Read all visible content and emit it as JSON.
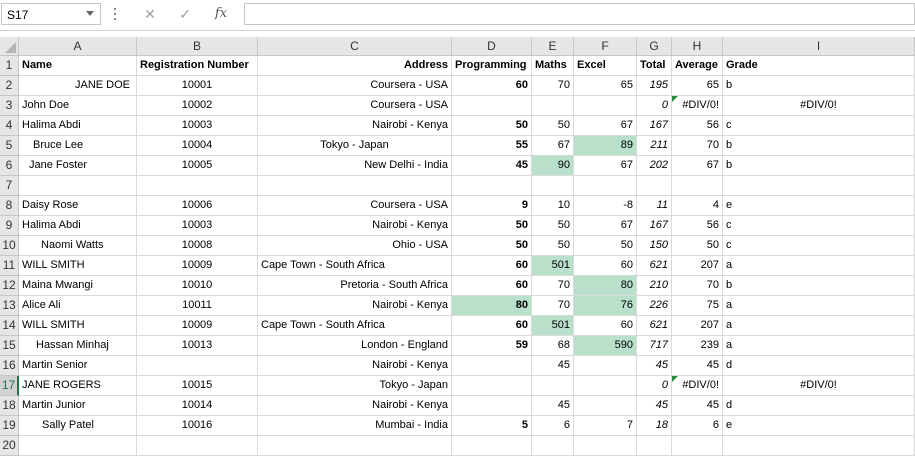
{
  "name_box": {
    "value": "S17"
  },
  "formula_bar": {
    "cancel_icon": "✕",
    "enter_icon": "✓",
    "fx_label": "fx",
    "value": ""
  },
  "columns": [
    "A",
    "B",
    "C",
    "D",
    "E",
    "F",
    "G",
    "H",
    "I"
  ],
  "selected_row": "17",
  "accent_color": "#217346",
  "highlight_color": "#b8e0ca",
  "rows": [
    {
      "num": "1",
      "A": "Name",
      "B": "Registration Number",
      "C": "Address",
      "D": "Programming",
      "E": "Maths",
      "F": "Excel",
      "G": "Total",
      "H": "Average",
      "I": "Grade"
    },
    {
      "num": "2",
      "A": "JANE DOE",
      "B": "10001",
      "C": "Coursera - USA",
      "D": "60",
      "E": "70",
      "F": "65",
      "G": "195",
      "H": "65",
      "I": "b"
    },
    {
      "num": "3",
      "A": "John Doe",
      "B": "10002",
      "C": "Coursera - USA",
      "D": "",
      "E": "",
      "F": "",
      "G": "0",
      "H": "#DIV/0!",
      "I": "#DIV/0!"
    },
    {
      "num": "4",
      "A": "Halima Abdi",
      "B": "10003",
      "C": "Nairobi - Kenya",
      "D": "50",
      "E": "50",
      "F": "67",
      "G": "167",
      "H": "56",
      "I": "c"
    },
    {
      "num": "5",
      "A": "Bruce     Lee",
      "B": "10004",
      "C": "Tokyo - Japan",
      "D": "55",
      "E": "67",
      "F": "89",
      "G": "211",
      "H": "70",
      "I": "b"
    },
    {
      "num": "6",
      "A": "Jane  Foster",
      "B": "10005",
      "C": "New Delhi - India",
      "D": "45",
      "E": "90",
      "F": "67",
      "G": "202",
      "H": "67",
      "I": "b"
    },
    {
      "num": "7",
      "A": "",
      "B": "",
      "C": "",
      "D": "",
      "E": "",
      "F": "",
      "G": "",
      "H": "",
      "I": ""
    },
    {
      "num": "8",
      "A": "Daisy     Rose",
      "B": "10006",
      "C": "Coursera - USA",
      "D": "9",
      "E": "10",
      "F": "-8",
      "G": "11",
      "H": "4",
      "I": "e"
    },
    {
      "num": "9",
      "A": "Halima Abdi",
      "B": "10003",
      "C": "Nairobi - Kenya",
      "D": "50",
      "E": "50",
      "F": "67",
      "G": "167",
      "H": "56",
      "I": "c"
    },
    {
      "num": "10",
      "A": "Naomi Watts",
      "B": "10008",
      "C": "Ohio - USA",
      "D": "50",
      "E": "50",
      "F": "50",
      "G": "150",
      "H": "50",
      "I": "c"
    },
    {
      "num": "11",
      "A": "WILL SMITH",
      "B": "10009",
      "C": "Cape Town - South Africa",
      "D": "60",
      "E": "501",
      "F": "60",
      "G": "621",
      "H": "207",
      "I": "a"
    },
    {
      "num": "12",
      "A": "Maina Mwangi",
      "B": "10010",
      "C": "Pretoria - South Africa",
      "D": "60",
      "E": "70",
      "F": "80",
      "G": "210",
      "H": "70",
      "I": "b"
    },
    {
      "num": "13",
      "A": "Alice Ali",
      "B": "10011",
      "C": "Nairobi - Kenya",
      "D": "80",
      "E": "70",
      "F": "76",
      "G": "226",
      "H": "75",
      "I": "a"
    },
    {
      "num": "14",
      "A": "WILL SMITH",
      "B": "10009",
      "C": "Cape Town - South Africa",
      "D": "60",
      "E": "501",
      "F": "60",
      "G": "621",
      "H": "207",
      "I": "a"
    },
    {
      "num": "15",
      "A": "Hassan Minhaj",
      "B": "10013",
      "C": "London - England",
      "D": "59",
      "E": "68",
      "F": "590",
      "G": "717",
      "H": "239",
      "I": "a"
    },
    {
      "num": "16",
      "A": "Martin Senior",
      "B": "",
      "C": "Nairobi - Kenya",
      "D": "",
      "E": "45",
      "F": "",
      "G": "45",
      "H": "45",
      "I": "d"
    },
    {
      "num": "17",
      "A": "JANE        ROGERS",
      "B": "10015",
      "C": "Tokyo - Japan",
      "D": "",
      "E": "",
      "F": "",
      "G": "0",
      "H": "#DIV/0!",
      "I": "#DIV/0!"
    },
    {
      "num": "18",
      "A": "Martin Junior",
      "B": "10014",
      "C": "Nairobi - Kenya",
      "D": "",
      "E": "45",
      "F": "",
      "G": "45",
      "H": "45",
      "I": "d"
    },
    {
      "num": "19",
      "A": "Sally Patel",
      "B": "10016",
      "C": "Mumbai - India",
      "D": "5",
      "E": "6",
      "F": "7",
      "G": "18",
      "H": "6",
      "I": "e"
    },
    {
      "num": "20",
      "A": "",
      "B": "",
      "C": "",
      "D": "",
      "E": "",
      "F": "",
      "G": "",
      "H": "",
      "I": ""
    }
  ]
}
